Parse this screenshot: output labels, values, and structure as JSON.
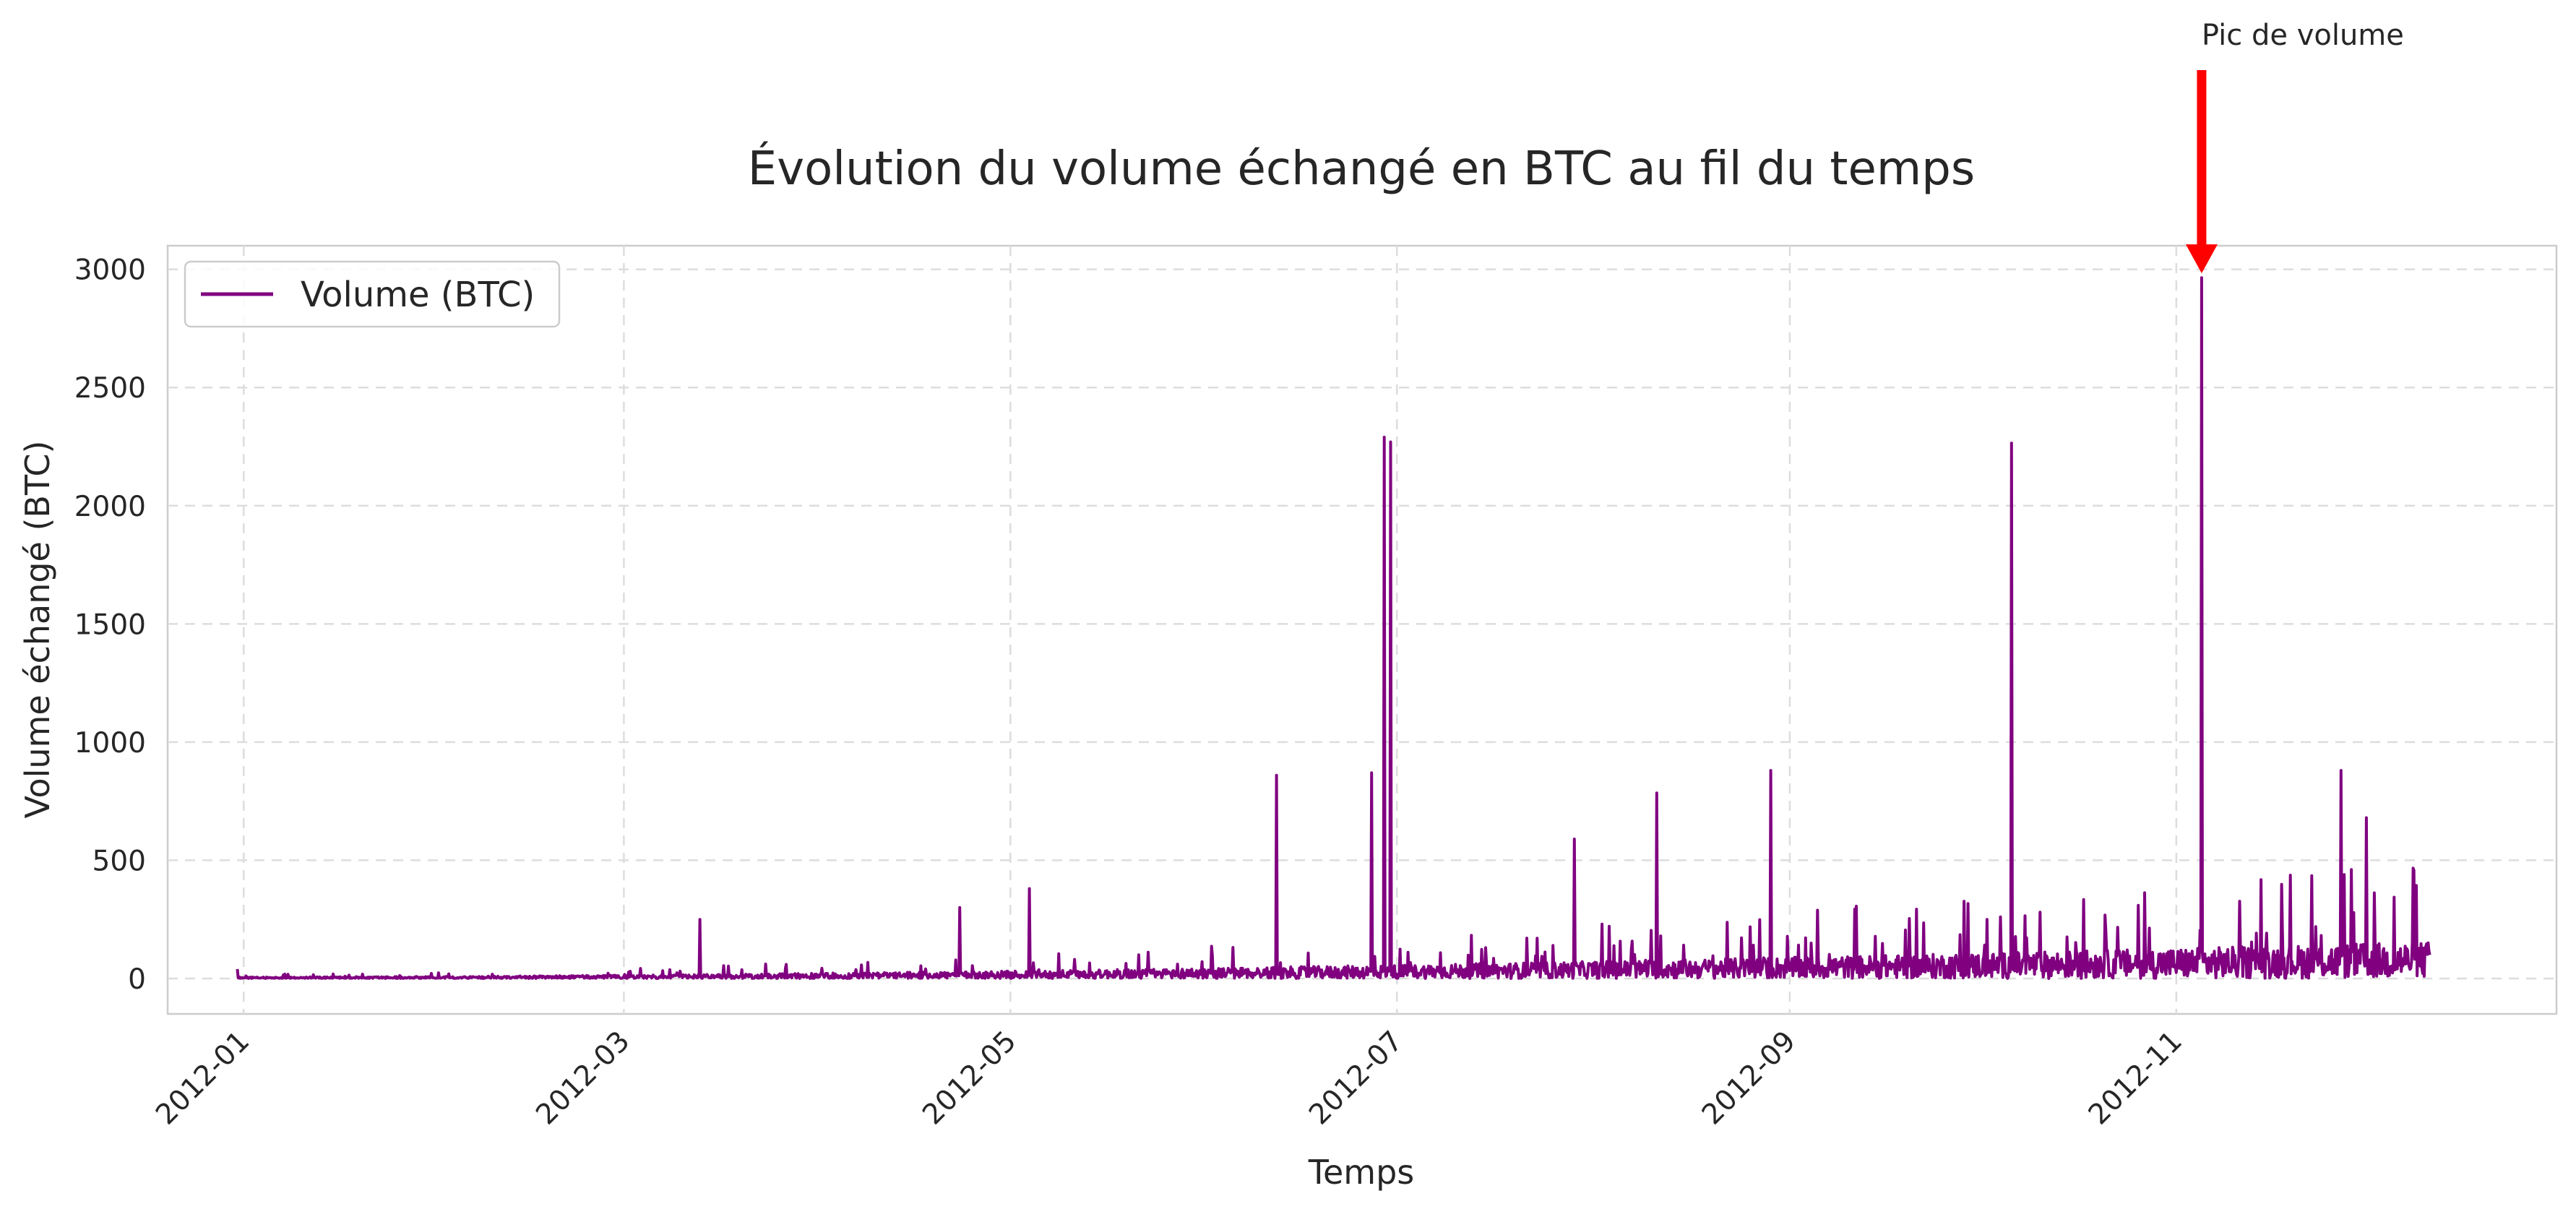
{
  "chart_data": {
    "type": "line",
    "title": "Évolution du volume échangé en BTC au fil du temps",
    "xlabel": "Temps",
    "ylabel": "Volume échangé (BTC)",
    "xlim": [
      "2011-12-20",
      "2012-12-31"
    ],
    "ylim": [
      -150,
      3100
    ],
    "grid": true,
    "grid_style": "dashed",
    "legend_position": "top-left",
    "x_ticks": [
      "2012-01-01",
      "2012-03-01",
      "2012-05-01",
      "2012-07-01",
      "2012-09-01",
      "2012-11-01"
    ],
    "x_tick_labels": [
      "2012-01",
      "2012-03",
      "2012-05",
      "2012-07",
      "2012-09",
      "2012-11"
    ],
    "y_ticks": [
      0,
      500,
      1000,
      1500,
      2000,
      2500,
      3000
    ],
    "y_tick_labels": [
      "0",
      "500",
      "1000",
      "1500",
      "2000",
      "2500",
      "3000"
    ],
    "series": [
      {
        "name": "Volume (BTC)",
        "color": "#800080",
        "x_range": [
          "2011-12-31",
          "2012-12-11"
        ],
        "peaks": [
          {
            "x": "2011-12-31",
            "y": 40
          },
          {
            "x": "2012-03-13",
            "y": 250
          },
          {
            "x": "2012-04-23",
            "y": 300
          },
          {
            "x": "2012-05-04",
            "y": 380
          },
          {
            "x": "2012-06-12",
            "y": 860
          },
          {
            "x": "2012-06-27",
            "y": 870
          },
          {
            "x": "2012-06-29",
            "y": 2290
          },
          {
            "x": "2012-06-30",
            "y": 2270
          },
          {
            "x": "2012-07-29",
            "y": 590
          },
          {
            "x": "2012-08-11",
            "y": 785
          },
          {
            "x": "2012-08-29",
            "y": 880
          },
          {
            "x": "2012-10-06",
            "y": 2265
          },
          {
            "x": "2012-11-05",
            "y": 2965
          },
          {
            "x": "2012-11-27",
            "y": 880
          },
          {
            "x": "2012-12-01",
            "y": 680
          }
        ]
      }
    ],
    "annotations": [
      {
        "text": "Pic de volume",
        "x": "2012-11-05",
        "y": 2965,
        "arrow_color": "#ff0000"
      }
    ]
  }
}
